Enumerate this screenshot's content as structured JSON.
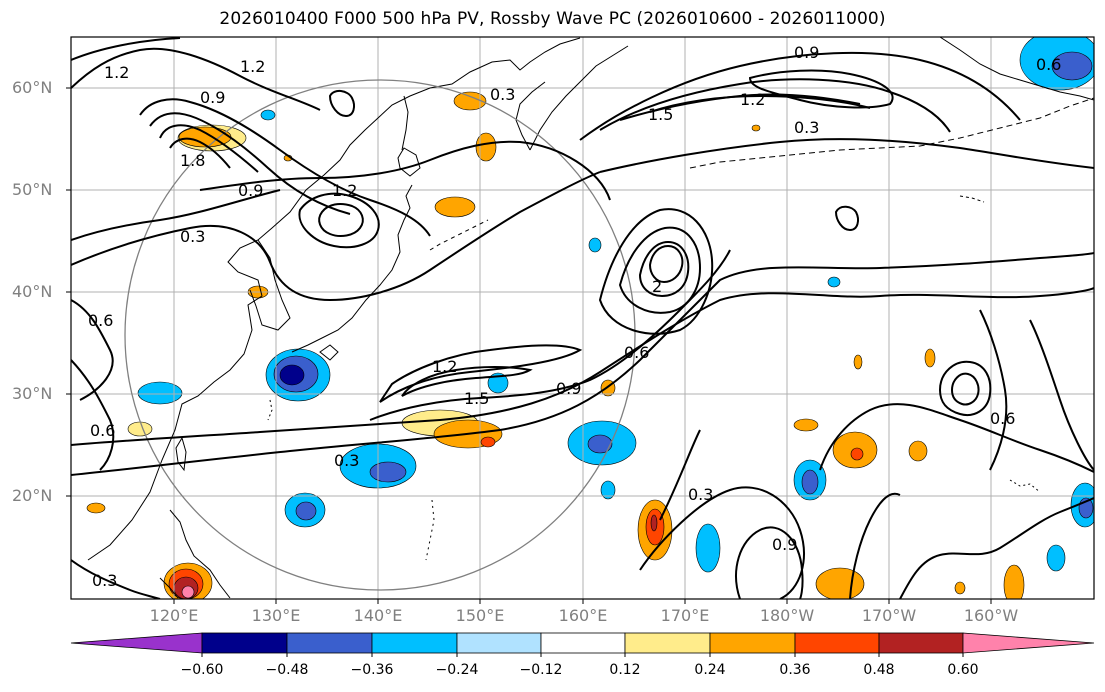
{
  "title": "2026010400 F000 500 hPa PV, Rossby Wave PC (2026010600 - 2026011000)",
  "map": {
    "lat_ticks": [
      "60°N",
      "50°N",
      "40°N",
      "30°N",
      "20°N"
    ],
    "lon_ticks": [
      "120°E",
      "130°E",
      "140°E",
      "150°E",
      "160°E",
      "170°E",
      "180°W",
      "170°W",
      "160°W"
    ],
    "pv_contour_labels": [
      "0.3",
      "0.6",
      "0.9",
      "1.2",
      "1.5",
      "1.8",
      "2"
    ],
    "shading_colors": {
      "neg_strong": "#00008b",
      "neg_mid": "#3a5fcd",
      "neg_weak": "#00bfff",
      "neg_light": "#b0e2ff",
      "pos_light": "#ffec8b",
      "pos_weak": "#ffa500",
      "pos_mid": "#ff4500",
      "pos_strong": "#b22222"
    },
    "features": {
      "land_outline_color": "#000000",
      "grid": true,
      "influence_circle_color": "#808080"
    }
  },
  "colorbar": {
    "colors": [
      "#9932cc",
      "#00008b",
      "#3a5fcd",
      "#00bfff",
      "#b0e2ff",
      "#ffffff",
      "#ffec8b",
      "#ffa500",
      "#ff4500",
      "#b22222",
      "#ff82ab"
    ],
    "tick_labels": [
      "−0.60",
      "−0.48",
      "−0.36",
      "−0.24",
      "−0.12",
      "0.12",
      "0.24",
      "0.36",
      "0.48",
      "0.60"
    ]
  }
}
